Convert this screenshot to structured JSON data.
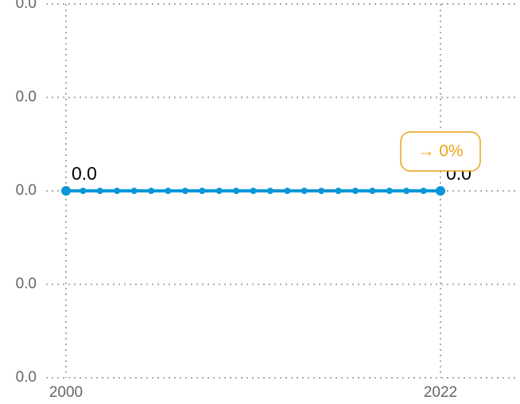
{
  "chart_data": {
    "type": "line",
    "x": [
      2000,
      2001,
      2002,
      2003,
      2004,
      2005,
      2006,
      2007,
      2008,
      2009,
      2010,
      2011,
      2012,
      2013,
      2014,
      2015,
      2016,
      2017,
      2018,
      2019,
      2020,
      2021,
      2022
    ],
    "series": [
      {
        "color": "#0a96d8",
        "values": [
          0,
          0,
          0,
          0,
          0,
          0,
          0,
          0,
          0,
          0,
          0,
          0,
          0,
          0,
          0,
          0,
          0,
          0,
          0,
          0,
          0,
          0,
          0
        ],
        "value_labels": [
          "0.0",
          null,
          null,
          null,
          null,
          null,
          null,
          null,
          null,
          null,
          null,
          null,
          null,
          null,
          null,
          null,
          null,
          null,
          null,
          null,
          null,
          null,
          "0.0"
        ]
      }
    ],
    "xlim": [
      2000,
      2022
    ],
    "xticks": [
      2000,
      2022
    ],
    "ylim": [
      -0.02,
      0.02
    ],
    "yticks": [
      {
        "value": -0.02,
        "label": "0.0"
      },
      {
        "value": -0.01,
        "label": "0.0"
      },
      {
        "value": 0,
        "label": "0.0"
      },
      {
        "value": 0.01,
        "label": "0.0"
      },
      {
        "value": 0.02,
        "label": "0.0"
      }
    ],
    "grid": true,
    "annotation": "→ 0%",
    "annotation_color": "#e8a317"
  }
}
